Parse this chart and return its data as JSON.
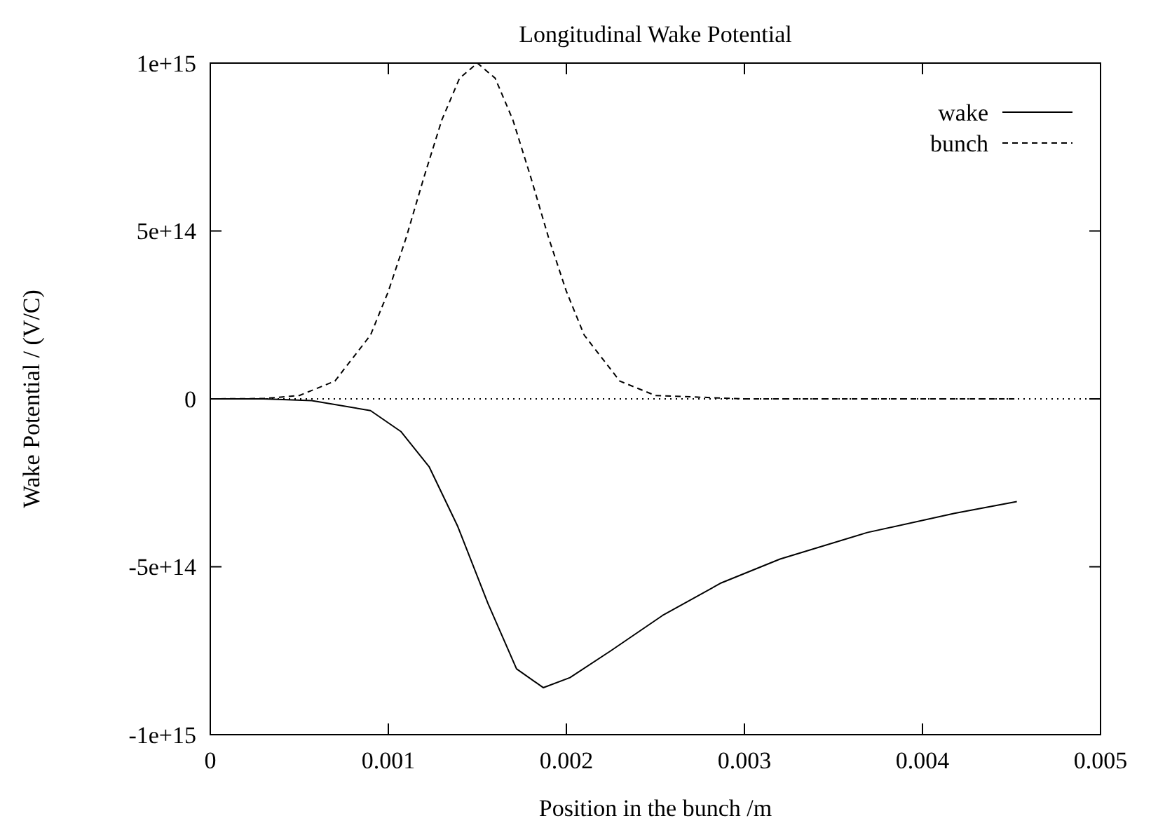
{
  "chart_data": {
    "type": "line",
    "title": "Longitudinal Wake Potential",
    "xlabel": "Position in the bunch /m",
    "ylabel": "Wake Potential / (V/C)",
    "xlim": [
      0,
      0.005
    ],
    "xticks": [
      0,
      0.001,
      0.002,
      0.003,
      0.004,
      0.005
    ],
    "ylim": [
      -1000000000000000.0,
      1000000000000000.0
    ],
    "yticks": [
      {
        "value": -1000000000000000.0,
        "label": "-1e+15"
      },
      {
        "value": -500000000000000.0,
        "label": "-5e+14"
      },
      0,
      {
        "value": 500000000000000.0,
        "label": "5e+14"
      },
      {
        "value": 1000000000000000.0,
        "label": "1e+15"
      }
    ],
    "grid": false,
    "legend": "top right",
    "marker": "none",
    "ref_lines": [
      {
        "axis": "y",
        "value": 0,
        "line_style": "dotted",
        "color": "#000000"
      }
    ],
    "series": [
      {
        "name": "wake",
        "color": "#000000",
        "line_style": "solid",
        "x": [
          0,
          0.0003,
          0.00057,
          0.0009,
          0.00107,
          0.00123,
          0.00139,
          0.00156,
          0.00172,
          0.00187,
          0.00202,
          0.00225,
          0.00254,
          0.00287,
          0.0032,
          0.00369,
          0.00418,
          0.00453
        ],
        "values": [
          0,
          0,
          -5000000000000.0,
          -35000000000000.0,
          -97000000000000.0,
          -203000000000000.0,
          -380000000000000.0,
          -610000000000000.0,
          -804000000000000.0,
          -860000000000000.0,
          -830000000000000.0,
          -750000000000000.0,
          -645000000000000.0,
          -548000000000000.0,
          -477000000000000.0,
          -398000000000000.0,
          -341000000000000.0,
          -306000000000000.0
        ]
      },
      {
        "name": "bunch",
        "color": "#000000",
        "line_style": "dashed",
        "x": [
          0,
          0.0003,
          0.0005,
          0.0007,
          0.0009,
          0.001,
          0.0011,
          0.0012,
          0.0013,
          0.0014,
          0.0015,
          0.0016,
          0.0017,
          0.0018,
          0.0019,
          0.002,
          0.0021,
          0.0023,
          0.0025,
          0.003,
          0.00453
        ],
        "values": [
          0,
          1000000000000.0,
          10000000000000.0,
          53000000000000.0,
          190000000000000.0,
          320000000000000.0,
          480000000000000.0,
          660000000000000.0,
          830000000000000.0,
          955000000000000.0,
          1000000000000000.0,
          955000000000000.0,
          830000000000000.0,
          660000000000000.0,
          480000000000000.0,
          320000000000000.0,
          190000000000000.0,
          53000000000000.0,
          10000000000000.0,
          0,
          0
        ]
      }
    ]
  }
}
